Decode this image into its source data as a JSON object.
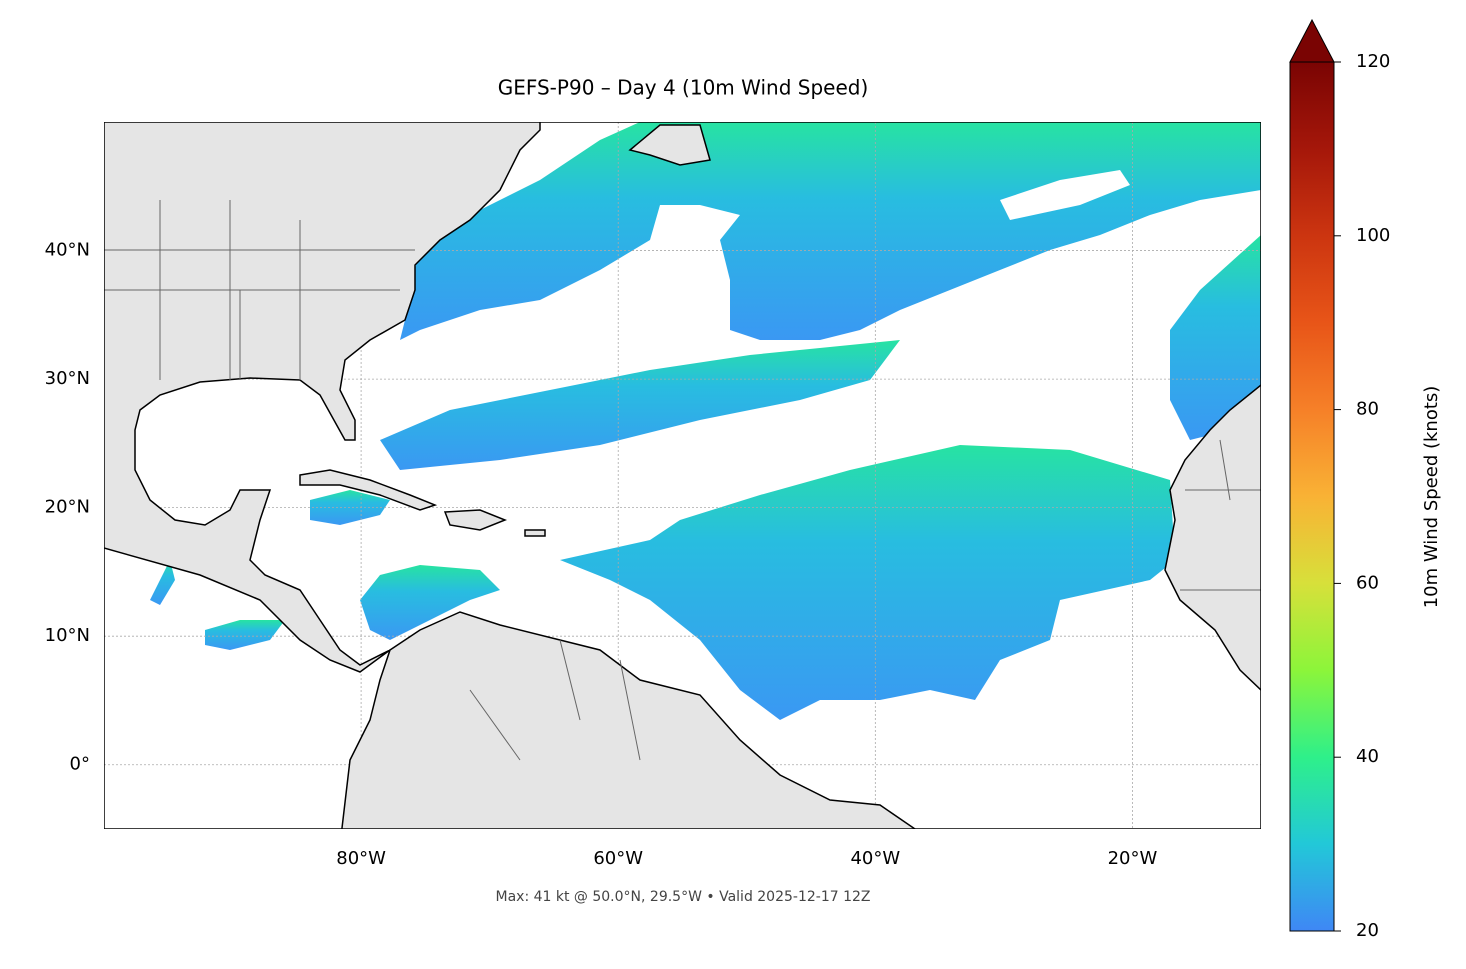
{
  "chart_data": {
    "type": "map",
    "title": "GEFS-P90 – Day 4 (10m Wind Speed)",
    "footer": "Max: 41 kt @ 50.0°N, 29.5°W • Valid 2025-12-17 12Z",
    "xlim": [
      -100,
      -10
    ],
    "ylim": [
      -5,
      50
    ],
    "xticks": [
      {
        "value": -80,
        "label": "80°W"
      },
      {
        "value": -60,
        "label": "60°W"
      },
      {
        "value": -40,
        "label": "40°W"
      },
      {
        "value": -20,
        "label": "20°W"
      }
    ],
    "yticks": [
      {
        "value": 0,
        "label": "0°"
      },
      {
        "value": 10,
        "label": "10°N"
      },
      {
        "value": 20,
        "label": "20°N"
      },
      {
        "value": 30,
        "label": "30°N"
      },
      {
        "value": 40,
        "label": "40°N"
      }
    ],
    "grid": true,
    "colorbar": {
      "label": "10m Wind Speed (knots)",
      "clim": [
        20,
        120
      ],
      "ticks": [
        20,
        40,
        60,
        80,
        100,
        120
      ],
      "colormap": [
        "#3f87f5",
        "#22c8d8",
        "#2ef08a",
        "#8cf53a",
        "#d7e03a",
        "#f9b235",
        "#f68028",
        "#e85518",
        "#cc3510",
        "#a5170a",
        "#7a0403"
      ],
      "extend": "max"
    }
  }
}
